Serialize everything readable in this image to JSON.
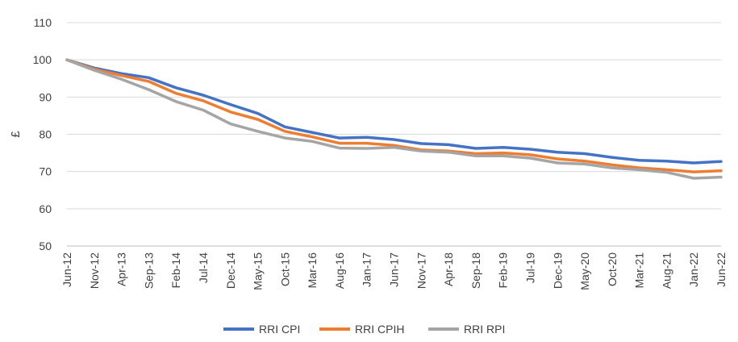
{
  "chart_data": {
    "type": "line",
    "title": "",
    "xlabel": "",
    "ylabel": "£",
    "ylim": [
      50,
      110
    ],
    "yticks": [
      50,
      60,
      70,
      80,
      90,
      100,
      110
    ],
    "grid": "horizontal",
    "legend_position": "bottom",
    "x_tick_labels": [
      "Jun-12",
      "Nov-12",
      "Apr-13",
      "Sep-13",
      "Feb-14",
      "Jul-14",
      "Dec-14",
      "May-15",
      "Oct-15",
      "Mar-16",
      "Aug-16",
      "Jan-17",
      "Jun-17",
      "Nov-17",
      "Apr-18",
      "Sep-18",
      "Feb-19",
      "Jul-19",
      "Dec-19",
      "May-20",
      "Oct-20",
      "Mar-21",
      "Aug-21",
      "Jan-22",
      "Jun-22"
    ],
    "x": [
      "Jun-12",
      "Nov-12",
      "Apr-13",
      "Sep-13",
      "Feb-14",
      "Jul-14",
      "Dec-14",
      "May-15",
      "Oct-15",
      "Mar-16",
      "Aug-16",
      "Jan-17",
      "Jun-17",
      "Nov-17",
      "Apr-18",
      "Sep-18",
      "Feb-19",
      "Jul-19",
      "Dec-19",
      "May-20",
      "Oct-20",
      "Mar-21",
      "Aug-21",
      "Jan-22",
      "Jun-22"
    ],
    "series": [
      {
        "name": "RRI CPI",
        "color": "#4472C4",
        "values": [
          100.0,
          97.8,
          96.3,
          95.2,
          92.5,
          90.5,
          88.0,
          85.6,
          82.0,
          80.5,
          79.0,
          79.2,
          78.6,
          77.5,
          77.2,
          76.2,
          76.5,
          76.0,
          75.2,
          74.8,
          73.8,
          73.0,
          72.8,
          72.3,
          72.7
        ]
      },
      {
        "name": "RRI CPIH",
        "color": "#ED7D31",
        "values": [
          100.0,
          97.5,
          95.8,
          94.2,
          91.0,
          89.0,
          86.0,
          84.0,
          80.8,
          79.3,
          77.6,
          77.6,
          77.0,
          75.8,
          75.5,
          74.8,
          75.0,
          74.5,
          73.4,
          72.8,
          71.8,
          71.0,
          70.5,
          69.9,
          70.2
        ]
      },
      {
        "name": "RRI RPI",
        "color": "#A5A5A5",
        "values": [
          100.0,
          97.2,
          94.8,
          92.0,
          88.8,
          86.5,
          82.8,
          80.8,
          79.0,
          78.1,
          76.3,
          76.2,
          76.5,
          75.5,
          75.2,
          74.2,
          74.2,
          73.6,
          72.3,
          72.0,
          71.0,
          70.5,
          69.8,
          68.2,
          68.5
        ]
      }
    ]
  }
}
